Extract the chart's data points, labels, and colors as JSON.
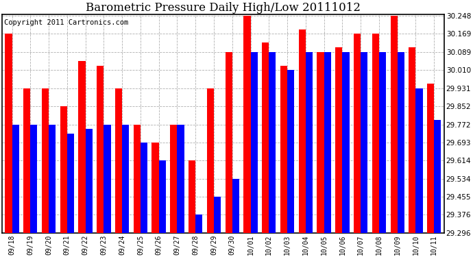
{
  "title": "Barometric Pressure Daily High/Low 20111012",
  "copyright": "Copyright 2011 Cartronics.com",
  "categories": [
    "09/18",
    "09/19",
    "09/20",
    "09/21",
    "09/22",
    "09/23",
    "09/24",
    "09/25",
    "09/26",
    "09/27",
    "09/28",
    "09/29",
    "09/30",
    "10/01",
    "10/02",
    "10/03",
    "10/04",
    "10/05",
    "10/06",
    "10/07",
    "10/08",
    "10/09",
    "10/10",
    "10/11"
  ],
  "highs": [
    30.169,
    29.931,
    29.931,
    29.852,
    30.05,
    30.03,
    29.931,
    29.772,
    29.693,
    29.772,
    29.614,
    29.931,
    30.089,
    30.248,
    30.13,
    30.03,
    30.189,
    30.089,
    30.109,
    30.169,
    30.169,
    30.248,
    30.109,
    29.95
  ],
  "lows": [
    29.772,
    29.772,
    29.772,
    29.732,
    29.752,
    29.772,
    29.772,
    29.693,
    29.614,
    29.772,
    29.376,
    29.455,
    29.534,
    30.089,
    30.089,
    30.01,
    30.089,
    30.089,
    30.089,
    30.089,
    30.089,
    30.089,
    29.931,
    29.792
  ],
  "ymin": 29.296,
  "ymax": 30.248,
  "yticks": [
    29.296,
    29.376,
    29.455,
    29.534,
    29.614,
    29.693,
    29.772,
    29.852,
    29.931,
    30.01,
    30.089,
    30.169,
    30.248
  ],
  "high_color": "#ff0000",
  "low_color": "#0000ff",
  "background": "#ffffff",
  "grid_color": "#b0b0b0",
  "title_fontsize": 12,
  "copyright_fontsize": 7.5
}
